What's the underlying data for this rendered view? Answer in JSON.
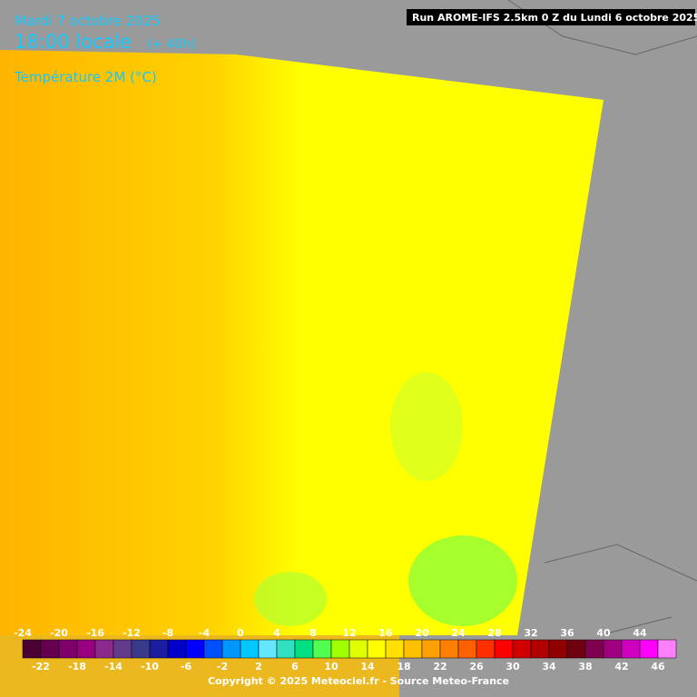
{
  "header": {
    "date": "Mardi 7 octobre 2025",
    "time": "18:00 locale",
    "lead": "(+ 40h)",
    "parameter": "Température 2M (°C)",
    "run": "Run AROME-IFS 2.5km 0 Z du Lundi 6 octobre 2025"
  },
  "colorbar": {
    "labels": [
      -24,
      -22,
      -20,
      -18,
      -16,
      -14,
      -12,
      -10,
      -8,
      -6,
      -4,
      -2,
      0,
      2,
      4,
      6,
      8,
      10,
      12,
      14,
      16,
      18,
      20,
      22,
      24,
      26,
      28,
      30,
      32,
      34,
      36,
      38,
      40,
      42,
      44,
      46
    ],
    "colors": [
      "#4b0033",
      "#650050",
      "#80006a",
      "#990080",
      "#8c2a8c",
      "#643a8c",
      "#3a3a8c",
      "#1c1ca0",
      "#0000c8",
      "#0000ff",
      "#0050ff",
      "#0096ff",
      "#00c8ff",
      "#64e6ff",
      "#30e0c0",
      "#00e080",
      "#50ff50",
      "#a0ff00",
      "#e0ff00",
      "#ffff00",
      "#ffe000",
      "#ffc000",
      "#ffa000",
      "#ff8000",
      "#ff6000",
      "#ff3000",
      "#ff0000",
      "#d00000",
      "#b00000",
      "#900000",
      "#700010",
      "#800050",
      "#a00080",
      "#d000c0",
      "#ff00ff",
      "#ff80ff"
    ]
  },
  "footer": {
    "copyright": "Copyright © 2025 Meteociel.fr - Source Meteo-France"
  }
}
